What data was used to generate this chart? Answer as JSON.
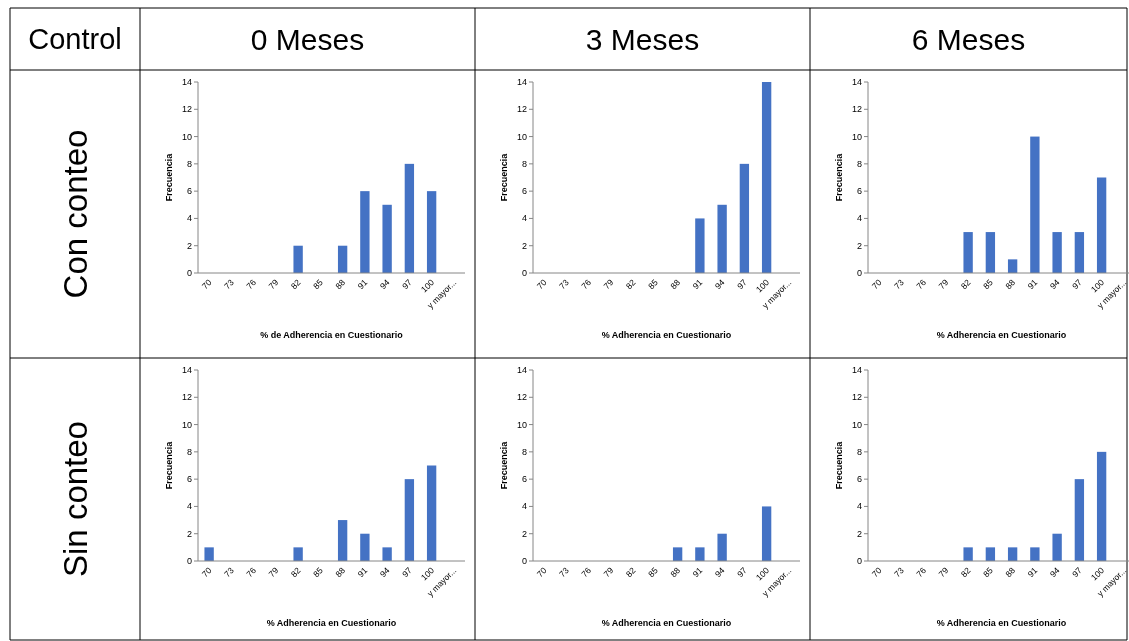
{
  "chart_data": [
    {
      "type": "other",
      "title": "Control",
      "annotations": [
        "0 Meses",
        "3 Meses",
        "6 Meses",
        "Con conteo",
        "Sin conteo"
      ]
    },
    {
      "type": "bar",
      "categories": [
        "70",
        "73",
        "76",
        "79",
        "82",
        "85",
        "88",
        "91",
        "94",
        "97",
        "100",
        "y mayor..."
      ],
      "values": [
        0,
        0,
        0,
        0,
        2,
        0,
        2,
        6,
        5,
        8,
        6,
        0
      ],
      "color": "#4472c4",
      "ylim": [
        0,
        14
      ],
      "yticks": [
        0,
        2,
        4,
        6,
        8,
        10,
        12,
        14
      ],
      "xlabel": "% de Adherencia en Cuestionario",
      "ylabel": "Frecuencia"
    },
    {
      "type": "bar",
      "categories": [
        "70",
        "73",
        "76",
        "79",
        "82",
        "85",
        "88",
        "91",
        "94",
        "97",
        "100",
        "y mayor..."
      ],
      "values": [
        0,
        0,
        0,
        0,
        0,
        0,
        0,
        4,
        5,
        8,
        14,
        0
      ],
      "color": "#4472c4",
      "ylim": [
        0,
        14
      ],
      "yticks": [
        0,
        2,
        4,
        6,
        8,
        10,
        12,
        14
      ],
      "xlabel": "% Adherencia en Cuestionario",
      "ylabel": "Frecuencia"
    },
    {
      "type": "bar",
      "categories": [
        "70",
        "73",
        "76",
        "79",
        "82",
        "85",
        "88",
        "91",
        "94",
        "97",
        "100",
        "y mayor..."
      ],
      "values": [
        0,
        0,
        0,
        0,
        3,
        3,
        1,
        10,
        3,
        3,
        7,
        0
      ],
      "color": "#4472c4",
      "ylim": [
        0,
        14
      ],
      "yticks": [
        0,
        2,
        4,
        6,
        8,
        10,
        12,
        14
      ],
      "xlabel": "% Adherencia en Cuestionario",
      "ylabel": "Frecuencia"
    },
    {
      "type": "bar",
      "categories": [
        "70",
        "73",
        "76",
        "79",
        "82",
        "85",
        "88",
        "91",
        "94",
        "97",
        "100",
        "y mayor..."
      ],
      "values": [
        1,
        0,
        0,
        0,
        1,
        0,
        3,
        2,
        1,
        6,
        7,
        0
      ],
      "color": "#4472c4",
      "ylim": [
        0,
        14
      ],
      "yticks": [
        0,
        2,
        4,
        6,
        8,
        10,
        12,
        14
      ],
      "xlabel": "% Adherencia en Cuestionario",
      "ylabel": "Frecuencia"
    },
    {
      "type": "bar",
      "categories": [
        "70",
        "73",
        "76",
        "79",
        "82",
        "85",
        "88",
        "91",
        "94",
        "97",
        "100",
        "y mayor..."
      ],
      "values": [
        0,
        0,
        0,
        0,
        0,
        0,
        1,
        1,
        2,
        0,
        4,
        0
      ],
      "color": "#4472c4",
      "ylim": [
        0,
        14
      ],
      "yticks": [
        0,
        2,
        4,
        6,
        8,
        10,
        12,
        14
      ],
      "xlabel": "% Adherencia en Cuestionario",
      "ylabel": "Frecuencia"
    },
    {
      "type": "bar",
      "categories": [
        "70",
        "73",
        "76",
        "79",
        "82",
        "85",
        "88",
        "91",
        "94",
        "97",
        "100",
        "y mayor..."
      ],
      "values": [
        0,
        0,
        0,
        0,
        1,
        1,
        1,
        1,
        2,
        6,
        8,
        0
      ],
      "color": "#4472c4",
      "ylim": [
        0,
        14
      ],
      "yticks": [
        0,
        2,
        4,
        6,
        8,
        10,
        12,
        14
      ],
      "xlabel": "% Adherencia en Cuestionario",
      "ylabel": "Frecuencia"
    }
  ]
}
